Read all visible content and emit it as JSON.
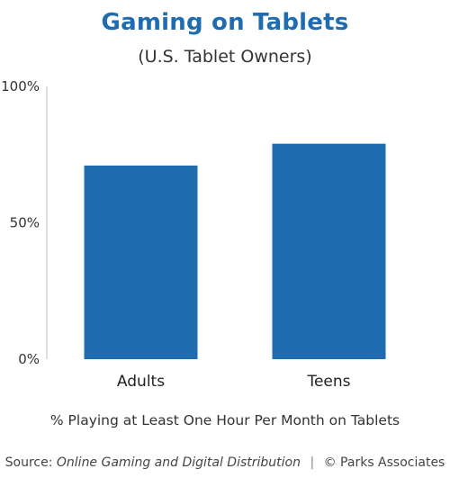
{
  "chart_data": {
    "type": "bar",
    "title": "Gaming on Tablets",
    "subtitle": "(U.S. Tablet Owners)",
    "categories": [
      "Adults",
      "Teens"
    ],
    "values": [
      71,
      79
    ],
    "ylim": [
      0,
      100
    ],
    "yticks": [
      "0%",
      "50%",
      "100%"
    ],
    "xlabel": "% Playing at Least One Hour Per Month on Tablets",
    "ylabel": "",
    "bar_color": "#1f6cb0",
    "grid": false
  },
  "source": {
    "prefix": "Source:",
    "title": "Online Gaming and Digital Distribution",
    "separator": "|",
    "copyright": "© Parks Associates"
  }
}
